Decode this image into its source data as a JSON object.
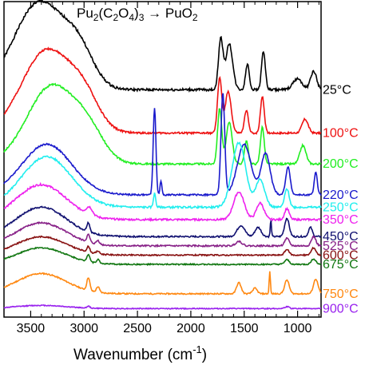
{
  "chart_data": {
    "type": "line",
    "title": {
      "prefix": "Pu",
      "sub1": "2",
      "mid1": "(C",
      "sub2": "2",
      "mid2": "O",
      "sub3": "4",
      "mid3": ")",
      "sub4": "3",
      "arrow": " → PuO",
      "sub5": "2"
    },
    "xlabel": {
      "text": "Wavenumber (cm",
      "sup": "-1",
      "close": ")"
    },
    "ylabel": "",
    "xlim": [
      3750,
      780
    ],
    "x_reversed": true,
    "x_ticks": [
      3500,
      3000,
      2500,
      2000,
      1500,
      1000
    ],
    "x_tick_labels": [
      "3500",
      "3000",
      "2500",
      "2000",
      "1500",
      "1000"
    ],
    "grid": false,
    "series": [
      {
        "name": "25°C",
        "color": "#000000",
        "baseline": 0.72,
        "scale": 0.85,
        "noise": 0.008,
        "peaks": [
          [
            3420,
            0.95,
            330
          ],
          [
            3050,
            0.35,
            200
          ],
          [
            1720,
            0.55,
            30
          ],
          [
            1640,
            0.5,
            45
          ],
          [
            1470,
            0.28,
            25
          ],
          [
            1320,
            0.42,
            25
          ],
          [
            1000,
            0.12,
            60
          ],
          [
            850,
            0.2,
            40
          ]
        ]
      },
      {
        "name": "100°C",
        "color": "#ee1111",
        "baseline": 0.58,
        "scale": 0.85,
        "noise": 0.006,
        "peaks": [
          [
            3350,
            0.9,
            330
          ],
          [
            3000,
            0.3,
            200
          ],
          [
            1730,
            0.6,
            28
          ],
          [
            1650,
            0.45,
            40
          ],
          [
            1480,
            0.25,
            25
          ],
          [
            1330,
            0.4,
            25
          ],
          [
            930,
            0.15,
            40
          ]
        ]
      },
      {
        "name": "200°C",
        "color": "#22ee22",
        "baseline": 0.48,
        "scale": 0.85,
        "noise": 0.006,
        "peaks": [
          [
            3300,
            0.85,
            330
          ],
          [
            2950,
            0.25,
            200
          ],
          [
            1730,
            0.6,
            28
          ],
          [
            1640,
            0.45,
            40
          ],
          [
            1480,
            0.25,
            25
          ],
          [
            1330,
            0.4,
            25
          ],
          [
            950,
            0.2,
            40
          ]
        ]
      },
      {
        "name": "220°C",
        "color": "#1a1acc",
        "baseline": 0.38,
        "scale": 0.85,
        "noise": 0.005,
        "peaks": [
          [
            3350,
            0.55,
            330
          ],
          [
            2340,
            0.95,
            18
          ],
          [
            2280,
            0.15,
            12
          ],
          [
            1700,
            1.1,
            25
          ],
          [
            1500,
            0.55,
            90
          ],
          [
            1300,
            0.45,
            60
          ],
          [
            1090,
            0.3,
            30
          ],
          [
            830,
            0.25,
            20
          ]
        ]
      },
      {
        "name": "250°C",
        "color": "#22eeee",
        "baseline": 0.34,
        "scale": 0.85,
        "noise": 0.006,
        "peaks": [
          [
            3350,
            0.55,
            330
          ],
          [
            2340,
            0.15,
            15
          ],
          [
            1550,
            0.7,
            90
          ],
          [
            1350,
            0.3,
            60
          ],
          [
            1100,
            0.2,
            30
          ]
        ]
      },
      {
        "name": "350°C",
        "color": "#ee22ee",
        "baseline": 0.3,
        "scale": 0.85,
        "noise": 0.006,
        "peaks": [
          [
            3400,
            0.38,
            330
          ],
          [
            2950,
            0.08,
            40
          ],
          [
            1550,
            0.3,
            70
          ],
          [
            1350,
            0.18,
            50
          ],
          [
            1100,
            0.12,
            30
          ]
        ]
      },
      {
        "name": "450°C",
        "color": "#101070",
        "baseline": 0.245,
        "scale": 0.85,
        "noise": 0.005,
        "peaks": [
          [
            3400,
            0.32,
            330
          ],
          [
            2960,
            0.1,
            20
          ],
          [
            1530,
            0.12,
            50
          ],
          [
            1370,
            0.1,
            40
          ],
          [
            1250,
            0.18,
            8
          ],
          [
            1100,
            0.2,
            30
          ],
          [
            880,
            0.1,
            25
          ]
        ]
      },
      {
        "name": "525°C",
        "color": "#882288",
        "baseline": 0.215,
        "scale": 0.85,
        "noise": 0.005,
        "peaks": [
          [
            3400,
            0.25,
            330
          ],
          [
            2960,
            0.08,
            20
          ],
          [
            2870,
            0.04,
            20
          ],
          [
            1550,
            0.05,
            40
          ],
          [
            1100,
            0.08,
            30
          ],
          [
            850,
            0.1,
            30
          ]
        ]
      },
      {
        "name": "600°C",
        "color": "#881111",
        "baseline": 0.185,
        "scale": 0.85,
        "noise": 0.004,
        "peaks": [
          [
            3400,
            0.2,
            330
          ],
          [
            2960,
            0.06,
            20
          ],
          [
            2870,
            0.03,
            20
          ],
          [
            1100,
            0.06,
            30
          ],
          [
            850,
            0.08,
            30
          ]
        ]
      },
      {
        "name": "675°C",
        "color": "#117711",
        "baseline": 0.155,
        "scale": 0.85,
        "noise": 0.004,
        "peaks": [
          [
            3400,
            0.18,
            330
          ],
          [
            2960,
            0.08,
            20
          ],
          [
            2870,
            0.04,
            20
          ],
          [
            1100,
            0.05,
            30
          ],
          [
            850,
            0.06,
            30
          ]
        ]
      },
      {
        "name": "750°C",
        "color": "#ff8811",
        "baseline": 0.06,
        "scale": 0.85,
        "noise": 0.004,
        "peaks": [
          [
            3400,
            0.22,
            330
          ],
          [
            2960,
            0.14,
            20
          ],
          [
            2870,
            0.06,
            20
          ],
          [
            1550,
            0.12,
            30
          ],
          [
            1400,
            0.06,
            30
          ],
          [
            1260,
            0.25,
            8
          ],
          [
            1100,
            0.15,
            30
          ],
          [
            830,
            0.16,
            30
          ]
        ]
      },
      {
        "name": "900°C",
        "color": "#9922ee",
        "baseline": 0.012,
        "scale": 0.85,
        "noise": 0.003,
        "peaks": [
          [
            3400,
            0.035,
            330
          ],
          [
            2960,
            0.02,
            20
          ],
          [
            1100,
            0.02,
            30
          ]
        ]
      }
    ],
    "series_label_ypos": [
      0.72,
      0.58,
      0.48,
      0.38,
      0.34,
      0.3,
      0.245,
      0.215,
      0.185,
      0.155,
      0.06,
      0.012
    ]
  }
}
